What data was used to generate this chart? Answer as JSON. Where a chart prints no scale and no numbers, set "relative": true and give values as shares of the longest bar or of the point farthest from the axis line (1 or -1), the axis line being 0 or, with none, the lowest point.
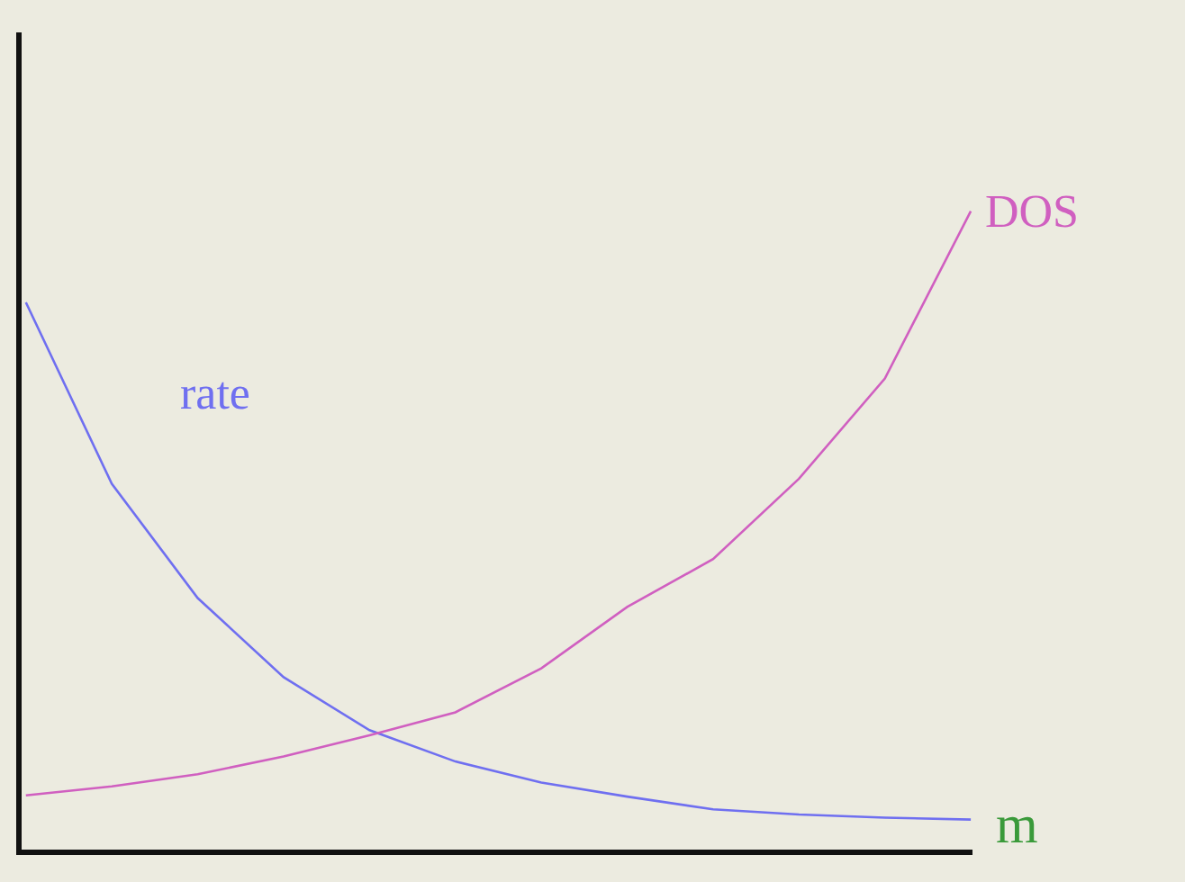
{
  "chart_data": {
    "type": "line",
    "relative": true,
    "xlabel": "m",
    "grid": false,
    "legend": false,
    "marker": "none",
    "line_style": "solid",
    "categories": [
      null,
      null,
      null,
      null,
      null,
      null,
      null,
      null,
      null,
      null,
      null,
      null
    ],
    "series": [
      {
        "name": "rate",
        "color": "#6f6ff0",
        "values": [
          0.857,
          0.573,
          0.394,
          0.27,
          0.187,
          0.138,
          0.105,
          0.083,
          0.063,
          0.055,
          0.05,
          0.047
        ]
      },
      {
        "name": "DOS",
        "color": "#d05fc0",
        "values": [
          0.085,
          0.099,
          0.118,
          0.146,
          0.179,
          0.215,
          0.284,
          0.38,
          0.455,
          0.581,
          0.738,
          1.0
        ]
      }
    ]
  }
}
